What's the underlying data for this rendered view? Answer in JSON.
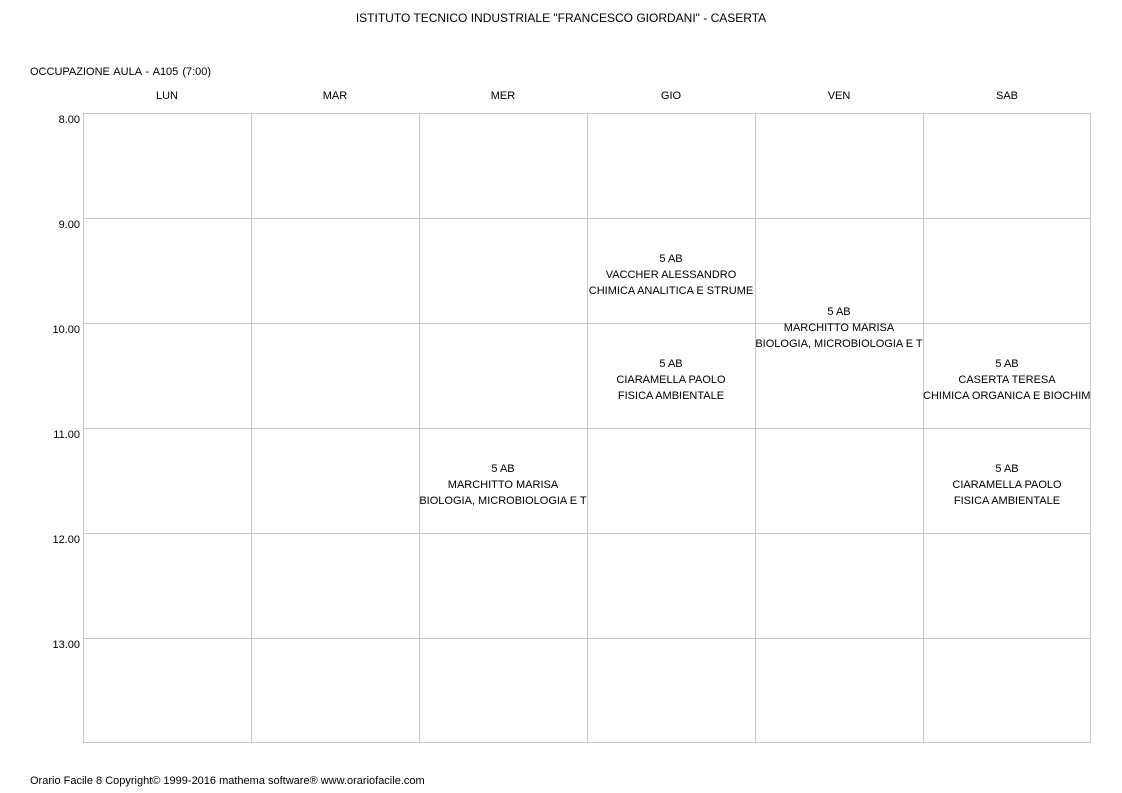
{
  "header": {
    "school": "ISTITUTO TECNICO INDUSTRIALE \"FRANCESCO GIORDANI\" - CASERTA",
    "subtitle": "OCCUPAZIONE AULA   -   A105  (7:00)"
  },
  "days": [
    "LUN",
    "MAR",
    "MER",
    "GIO",
    "VEN",
    "SAB"
  ],
  "hours": [
    "8.00",
    "9.00",
    "10.00",
    "11.00",
    "12.00",
    "13.00"
  ],
  "lessons": [
    {
      "day": 3,
      "hour": 1,
      "class": "5 AB",
      "teacher": "VACCHER ALESSANDRO",
      "subject": "CHIMICA ANALITICA E STRUME"
    },
    {
      "day": 4,
      "hour": 1.5,
      "class": "5 AB",
      "teacher": "MARCHITTO MARISA",
      "subject": "BIOLOGIA, MICROBIOLOGIA E T"
    },
    {
      "day": 3,
      "hour": 2,
      "class": "5 AB",
      "teacher": "CIARAMELLA PAOLO",
      "subject": "FISICA AMBIENTALE"
    },
    {
      "day": 5,
      "hour": 2,
      "class": "5 AB",
      "teacher": "CASERTA TERESA",
      "subject": "CHIMICA ORGANICA E BIOCHIMI"
    },
    {
      "day": 2,
      "hour": 3,
      "class": "5 AB",
      "teacher": "MARCHITTO MARISA",
      "subject": "BIOLOGIA, MICROBIOLOGIA E T"
    },
    {
      "day": 5,
      "hour": 3,
      "class": "5 AB",
      "teacher": "CIARAMELLA PAOLO",
      "subject": "FISICA AMBIENTALE"
    }
  ],
  "footer": {
    "text": "Orario Facile 8  Copyright© 1999-2016 mathema software®     www.orariofacile.com"
  }
}
